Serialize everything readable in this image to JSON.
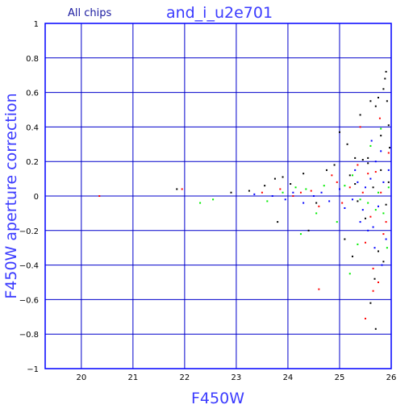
{
  "chart_data": {
    "type": "scatter",
    "title": "and_i_u2e701",
    "subtitle": "All chips",
    "xlabel": "F450W",
    "ylabel": "F450W aperture correction",
    "xlim": [
      19.3,
      26
    ],
    "ylim": [
      -1,
      1
    ],
    "xticks": [
      "20",
      "21",
      "22",
      "23",
      "24",
      "25",
      "26"
    ],
    "yticks": [
      "1",
      "0.8",
      "0.6",
      "0.4",
      "0.2",
      "0",
      "−0.2",
      "−0.4",
      "−0.6",
      "−0.8",
      "−1"
    ],
    "grid": true,
    "colors": {
      "frame": "#0000ff",
      "grid": "#0000cc",
      "title": "#3b3bff"
    },
    "series": [
      {
        "color": "#000000",
        "points": [
          [
            21.85,
            0.04
          ],
          [
            22.9,
            0.02
          ],
          [
            23.25,
            0.03
          ],
          [
            23.55,
            0.06
          ],
          [
            23.75,
            0.1
          ],
          [
            23.9,
            0.11
          ],
          [
            24.05,
            0.07
          ],
          [
            24.3,
            0.13
          ],
          [
            24.55,
            -0.04
          ],
          [
            24.75,
            0.15
          ],
          [
            24.9,
            0.18
          ],
          [
            25.0,
            0.37
          ],
          [
            25.1,
            -0.25
          ],
          [
            25.15,
            0.3
          ],
          [
            25.2,
            0.12
          ],
          [
            25.3,
            0.07
          ],
          [
            25.35,
            -0.03
          ],
          [
            25.4,
            0.47
          ],
          [
            25.45,
            0.21
          ],
          [
            25.5,
            -0.13
          ],
          [
            25.55,
            0.19
          ],
          [
            25.6,
            0.55
          ],
          [
            25.65,
            0.05
          ],
          [
            25.7,
            0.52
          ],
          [
            25.75,
            0.57
          ],
          [
            25.8,
            0.35
          ],
          [
            25.85,
            0.62
          ],
          [
            25.88,
            0.68
          ],
          [
            25.9,
            0.72
          ],
          [
            25.92,
            0.55
          ],
          [
            25.95,
            0.41
          ],
          [
            25.97,
            0.28
          ],
          [
            25.6,
            -0.62
          ],
          [
            25.68,
            -0.48
          ],
          [
            25.75,
            -0.32
          ],
          [
            25.85,
            -0.38
          ],
          [
            25.9,
            -0.05
          ],
          [
            25.7,
            -0.77
          ],
          [
            25.55,
            0.22
          ],
          [
            25.3,
            0.22
          ],
          [
            25.8,
            0.15
          ],
          [
            25.95,
            0.08
          ],
          [
            24.4,
            -0.2
          ],
          [
            23.8,
            -0.15
          ],
          [
            25.25,
            -0.35
          ]
        ]
      },
      {
        "color": "#ff0000",
        "points": [
          [
            20.35,
            0.0
          ],
          [
            21.95,
            0.04
          ],
          [
            23.5,
            0.02
          ],
          [
            23.85,
            0.04
          ],
          [
            24.1,
            0.0
          ],
          [
            24.25,
            0.02
          ],
          [
            24.45,
            0.03
          ],
          [
            24.6,
            -0.06
          ],
          [
            24.85,
            0.12
          ],
          [
            25.05,
            -0.04
          ],
          [
            25.2,
            0.05
          ],
          [
            25.35,
            0.18
          ],
          [
            25.45,
            0.02
          ],
          [
            25.55,
            0.13
          ],
          [
            25.6,
            -0.12
          ],
          [
            25.7,
            0.14
          ],
          [
            25.8,
            0.02
          ],
          [
            25.9,
            -0.15
          ],
          [
            25.95,
            0.25
          ],
          [
            25.5,
            -0.27
          ],
          [
            25.65,
            -0.42
          ],
          [
            25.75,
            -0.5
          ],
          [
            25.85,
            -0.22
          ],
          [
            24.6,
            -0.54
          ],
          [
            25.5,
            -0.71
          ],
          [
            25.65,
            -0.55
          ],
          [
            25.4,
            0.4
          ],
          [
            25.78,
            0.45
          ],
          [
            24.95,
            0.08
          ]
        ]
      },
      {
        "color": "#00ee00",
        "points": [
          [
            22.3,
            -0.04
          ],
          [
            22.55,
            -0.02
          ],
          [
            23.6,
            -0.03
          ],
          [
            23.9,
            0.02
          ],
          [
            24.15,
            0.05
          ],
          [
            24.35,
            0.04
          ],
          [
            24.55,
            -0.1
          ],
          [
            24.7,
            0.06
          ],
          [
            24.95,
            -0.15
          ],
          [
            25.1,
            0.06
          ],
          [
            25.25,
            0.12
          ],
          [
            25.4,
            -0.02
          ],
          [
            25.55,
            -0.04
          ],
          [
            25.6,
            0.29
          ],
          [
            25.75,
            0.02
          ],
          [
            25.85,
            -0.1
          ],
          [
            25.95,
            0.05
          ],
          [
            25.2,
            -0.45
          ],
          [
            25.7,
            -0.08
          ],
          [
            24.25,
            -0.22
          ],
          [
            25.8,
            0.39
          ],
          [
            25.92,
            -0.3
          ],
          [
            25.35,
            -0.28
          ]
        ]
      },
      {
        "color": "#0000ff",
        "points": [
          [
            23.35,
            0.01
          ],
          [
            23.7,
            0.0
          ],
          [
            23.95,
            -0.02
          ],
          [
            24.1,
            0.02
          ],
          [
            24.3,
            -0.04
          ],
          [
            24.5,
            0.0
          ],
          [
            24.65,
            0.02
          ],
          [
            24.8,
            -0.03
          ],
          [
            25.0,
            0.04
          ],
          [
            25.1,
            -0.07
          ],
          [
            25.25,
            -0.02
          ],
          [
            25.35,
            0.08
          ],
          [
            25.45,
            -0.08
          ],
          [
            25.5,
            0.05
          ],
          [
            25.6,
            0.1
          ],
          [
            25.65,
            -0.18
          ],
          [
            25.7,
            0.2
          ],
          [
            25.75,
            -0.06
          ],
          [
            25.8,
            0.26
          ],
          [
            25.85,
            0.08
          ],
          [
            25.9,
            -0.25
          ],
          [
            25.95,
            0.15
          ],
          [
            25.55,
            -0.2
          ],
          [
            25.68,
            -0.3
          ],
          [
            25.82,
            -0.4
          ],
          [
            25.62,
            0.32
          ],
          [
            25.4,
            -0.15
          ],
          [
            25.3,
            0.15
          ]
        ]
      }
    ]
  }
}
